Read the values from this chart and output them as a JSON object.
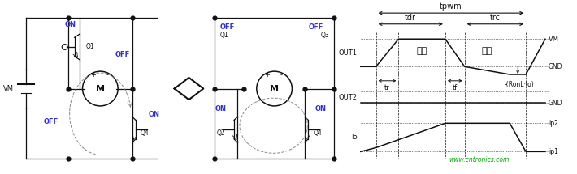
{
  "fig_width": 7.1,
  "fig_height": 2.15,
  "dpi": 100,
  "bg_color": "#ffffff",
  "blue_color": "#3333cc",
  "dark_color": "#111111",
  "gray_color": "#888888",
  "green_color": "#00aa00",
  "watermark": "www.cntronics.com",
  "tpwm_label": "tpwm",
  "tdr_label": "tdr",
  "trc_label": "trc",
  "vm_label": "VM",
  "gnd_label": "GND",
  "out1_label": "OUT1",
  "out2_label": "OUT2",
  "io_label": "Io",
  "tr_label": "tr",
  "tf_label": "tf",
  "ronl_label": "-(RonL·Io)",
  "shi_label": "施加",
  "reg_label": "再生",
  "ip2_label": "ip2",
  "ip1_label": "ip1"
}
